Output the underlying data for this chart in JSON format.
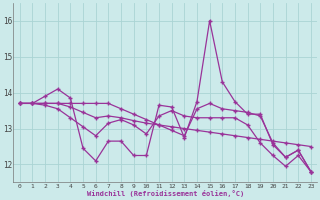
{
  "xlabel": "Windchill (Refroidissement éolien,°C)",
  "background_color": "#cceaea",
  "grid_color": "#aad4d4",
  "line_color": "#993399",
  "x": [
    0,
    1,
    2,
    3,
    4,
    5,
    6,
    7,
    8,
    9,
    10,
    11,
    12,
    13,
    14,
    15,
    16,
    17,
    18,
    19,
    20,
    21,
    22,
    23
  ],
  "series1": [
    13.7,
    13.7,
    13.9,
    14.1,
    13.85,
    12.45,
    12.1,
    12.65,
    12.65,
    12.25,
    12.25,
    13.65,
    13.6,
    12.75,
    13.75,
    16.0,
    14.3,
    13.75,
    13.4,
    13.4,
    12.55,
    12.2,
    12.4,
    11.8
  ],
  "series2": [
    13.7,
    13.7,
    13.7,
    13.7,
    13.7,
    13.7,
    13.7,
    13.7,
    13.55,
    13.4,
    13.25,
    13.1,
    12.95,
    12.8,
    13.55,
    13.7,
    13.55,
    13.5,
    13.45,
    13.35,
    12.6,
    12.2,
    12.4,
    11.8
  ],
  "series3": [
    13.7,
    13.7,
    13.7,
    13.7,
    13.6,
    13.45,
    13.3,
    13.35,
    13.3,
    13.22,
    13.15,
    13.1,
    13.05,
    13.0,
    12.95,
    12.9,
    12.85,
    12.8,
    12.75,
    12.7,
    12.65,
    12.6,
    12.55,
    12.5
  ],
  "series4": [
    13.7,
    13.7,
    13.65,
    13.55,
    13.3,
    13.05,
    12.8,
    13.15,
    13.25,
    13.1,
    12.85,
    13.35,
    13.5,
    13.35,
    13.3,
    13.3,
    13.3,
    13.3,
    13.1,
    12.6,
    12.25,
    11.95,
    12.25,
    11.8
  ],
  "ylim": [
    11.5,
    16.5
  ],
  "yticks": [
    12,
    13,
    14,
    15,
    16
  ],
  "xlim": [
    -0.5,
    23.5
  ],
  "xticks": [
    0,
    1,
    2,
    3,
    4,
    5,
    6,
    7,
    8,
    9,
    10,
    11,
    12,
    13,
    14,
    15,
    16,
    17,
    18,
    19,
    20,
    21,
    22,
    23
  ]
}
